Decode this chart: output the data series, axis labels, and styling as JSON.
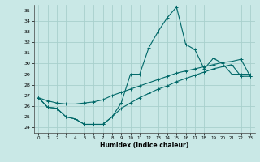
{
  "xlabel": "Humidex (Indice chaleur)",
  "xlim": [
    -0.5,
    23.5
  ],
  "ylim": [
    23.5,
    35.5
  ],
  "xticks": [
    0,
    1,
    2,
    3,
    4,
    5,
    6,
    7,
    8,
    9,
    10,
    11,
    12,
    13,
    14,
    15,
    16,
    17,
    18,
    19,
    20,
    21,
    22,
    23
  ],
  "yticks": [
    24,
    25,
    26,
    27,
    28,
    29,
    30,
    31,
    32,
    33,
    34,
    35
  ],
  "background_color": "#c9e8e6",
  "grid_color": "#a8d0cc",
  "line_color": "#006868",
  "line1_y": [
    26.8,
    25.9,
    25.8,
    25.0,
    24.8,
    24.3,
    24.3,
    24.3,
    25.0,
    26.3,
    29.0,
    29.0,
    31.5,
    33.0,
    34.3,
    35.3,
    31.8,
    31.3,
    29.5,
    30.5,
    30.0,
    29.0,
    29.0,
    29.0
  ],
  "line2_y": [
    26.8,
    26.5,
    26.3,
    26.2,
    26.2,
    26.3,
    26.4,
    26.6,
    27.0,
    27.3,
    27.6,
    27.9,
    28.2,
    28.5,
    28.8,
    29.1,
    29.3,
    29.5,
    29.7,
    29.9,
    30.1,
    30.2,
    30.4,
    28.8
  ],
  "line3_y": [
    26.8,
    25.9,
    25.8,
    25.0,
    24.8,
    24.3,
    24.3,
    24.3,
    25.0,
    25.8,
    26.3,
    26.8,
    27.2,
    27.6,
    27.9,
    28.3,
    28.6,
    28.9,
    29.2,
    29.5,
    29.7,
    29.9,
    28.8,
    28.8
  ]
}
